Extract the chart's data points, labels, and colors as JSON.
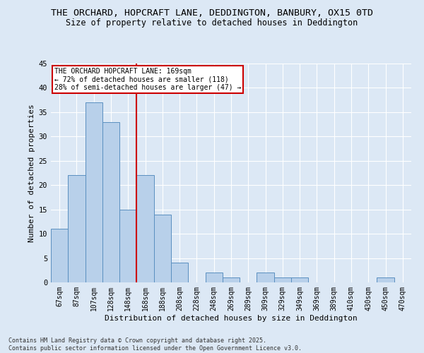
{
  "title_line1": "THE ORCHARD, HOPCRAFT LANE, DEDDINGTON, BANBURY, OX15 0TD",
  "title_line2": "Size of property relative to detached houses in Deddington",
  "xlabel": "Distribution of detached houses by size in Deddington",
  "ylabel": "Number of detached properties",
  "bin_labels": [
    "67sqm",
    "87sqm",
    "107sqm",
    "128sqm",
    "148sqm",
    "168sqm",
    "188sqm",
    "208sqm",
    "228sqm",
    "248sqm",
    "269sqm",
    "289sqm",
    "309sqm",
    "329sqm",
    "349sqm",
    "369sqm",
    "389sqm",
    "410sqm",
    "430sqm",
    "450sqm",
    "470sqm"
  ],
  "bar_heights": [
    11,
    22,
    37,
    33,
    15,
    22,
    14,
    4,
    0,
    2,
    1,
    0,
    2,
    1,
    1,
    0,
    0,
    0,
    0,
    1,
    0
  ],
  "bar_color": "#b8d0ea",
  "bar_edge_color": "#5a8fc0",
  "property_line_color": "#cc0000",
  "annotation_text": "THE ORCHARD HOPCRAFT LANE: 169sqm\n← 72% of detached houses are smaller (118)\n28% of semi-detached houses are larger (47) →",
  "annotation_box_color": "#ffffff",
  "annotation_box_edge_color": "#cc0000",
  "ylim": [
    0,
    45
  ],
  "yticks": [
    0,
    5,
    10,
    15,
    20,
    25,
    30,
    35,
    40,
    45
  ],
  "footer_text": "Contains HM Land Registry data © Crown copyright and database right 2025.\nContains public sector information licensed under the Open Government Licence v3.0.",
  "background_color": "#dce8f5",
  "grid_color": "#ffffff",
  "title_fontsize": 9.5,
  "subtitle_fontsize": 8.5,
  "axis_label_fontsize": 8,
  "tick_fontsize": 7,
  "annotation_fontsize": 7,
  "footer_fontsize": 6
}
